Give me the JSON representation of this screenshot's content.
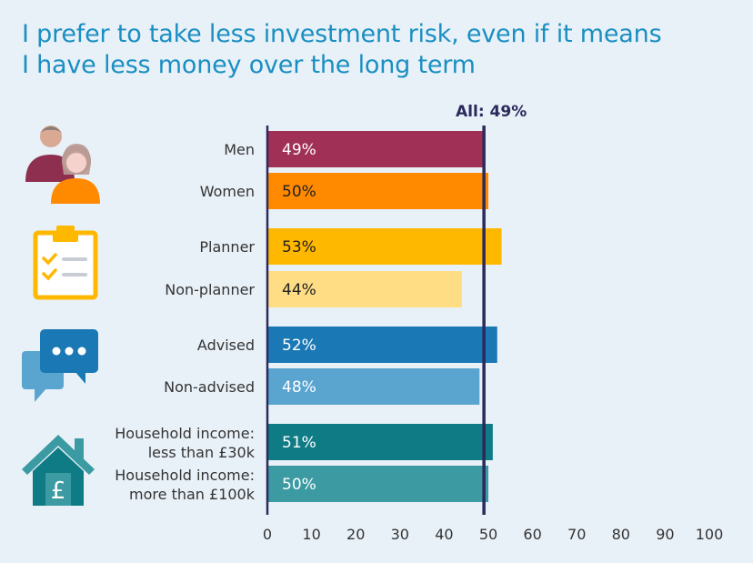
{
  "title": {
    "line1": "I prefer to take less investment risk, even if it means",
    "line2": "I have less money over the long term"
  },
  "chart_data": {
    "type": "bar",
    "orientation": "horizontal",
    "xlim": [
      0,
      100
    ],
    "xticks": [
      0,
      10,
      20,
      30,
      40,
      50,
      60,
      70,
      80,
      90,
      100
    ],
    "reference_line": {
      "value": 49,
      "label": "All: 49%",
      "color": "#2c2a5c"
    },
    "groups": [
      {
        "icon": "people-icon",
        "bars": [
          {
            "label": [
              "Men"
            ],
            "value": 49,
            "value_label": "49%",
            "color": "#a03055",
            "text_color": "#ffffff"
          },
          {
            "label": [
              "Women"
            ],
            "value": 50,
            "value_label": "50%",
            "color": "#ff8a00",
            "text_color": "#222222"
          }
        ]
      },
      {
        "icon": "clipboard-checklist-icon",
        "bars": [
          {
            "label": [
              "Planner"
            ],
            "value": 53,
            "value_label": "53%",
            "color": "#ffb800",
            "text_color": "#222222"
          },
          {
            "label": [
              "Non-planner"
            ],
            "value": 44,
            "value_label": "44%",
            "color": "#ffdd85",
            "text_color": "#222222"
          }
        ]
      },
      {
        "icon": "speech-bubbles-icon",
        "bars": [
          {
            "label": [
              "Advised"
            ],
            "value": 52,
            "value_label": "52%",
            "color": "#1a78b4",
            "text_color": "#ffffff"
          },
          {
            "label": [
              "Non-advised"
            ],
            "value": 48,
            "value_label": "48%",
            "color": "#5aa4d0",
            "text_color": "#ffffff"
          }
        ]
      },
      {
        "icon": "house-pound-icon",
        "bars": [
          {
            "label": [
              "Household income:",
              "less than £30k"
            ],
            "value": 51,
            "value_label": "51%",
            "color": "#0f7b85",
            "text_color": "#ffffff"
          },
          {
            "label": [
              "Household income:",
              "more than £100k"
            ],
            "value": 50,
            "value_label": "50%",
            "color": "#3b9aa2",
            "text_color": "#ffffff"
          }
        ]
      }
    ],
    "grid": false,
    "legend": "none"
  }
}
